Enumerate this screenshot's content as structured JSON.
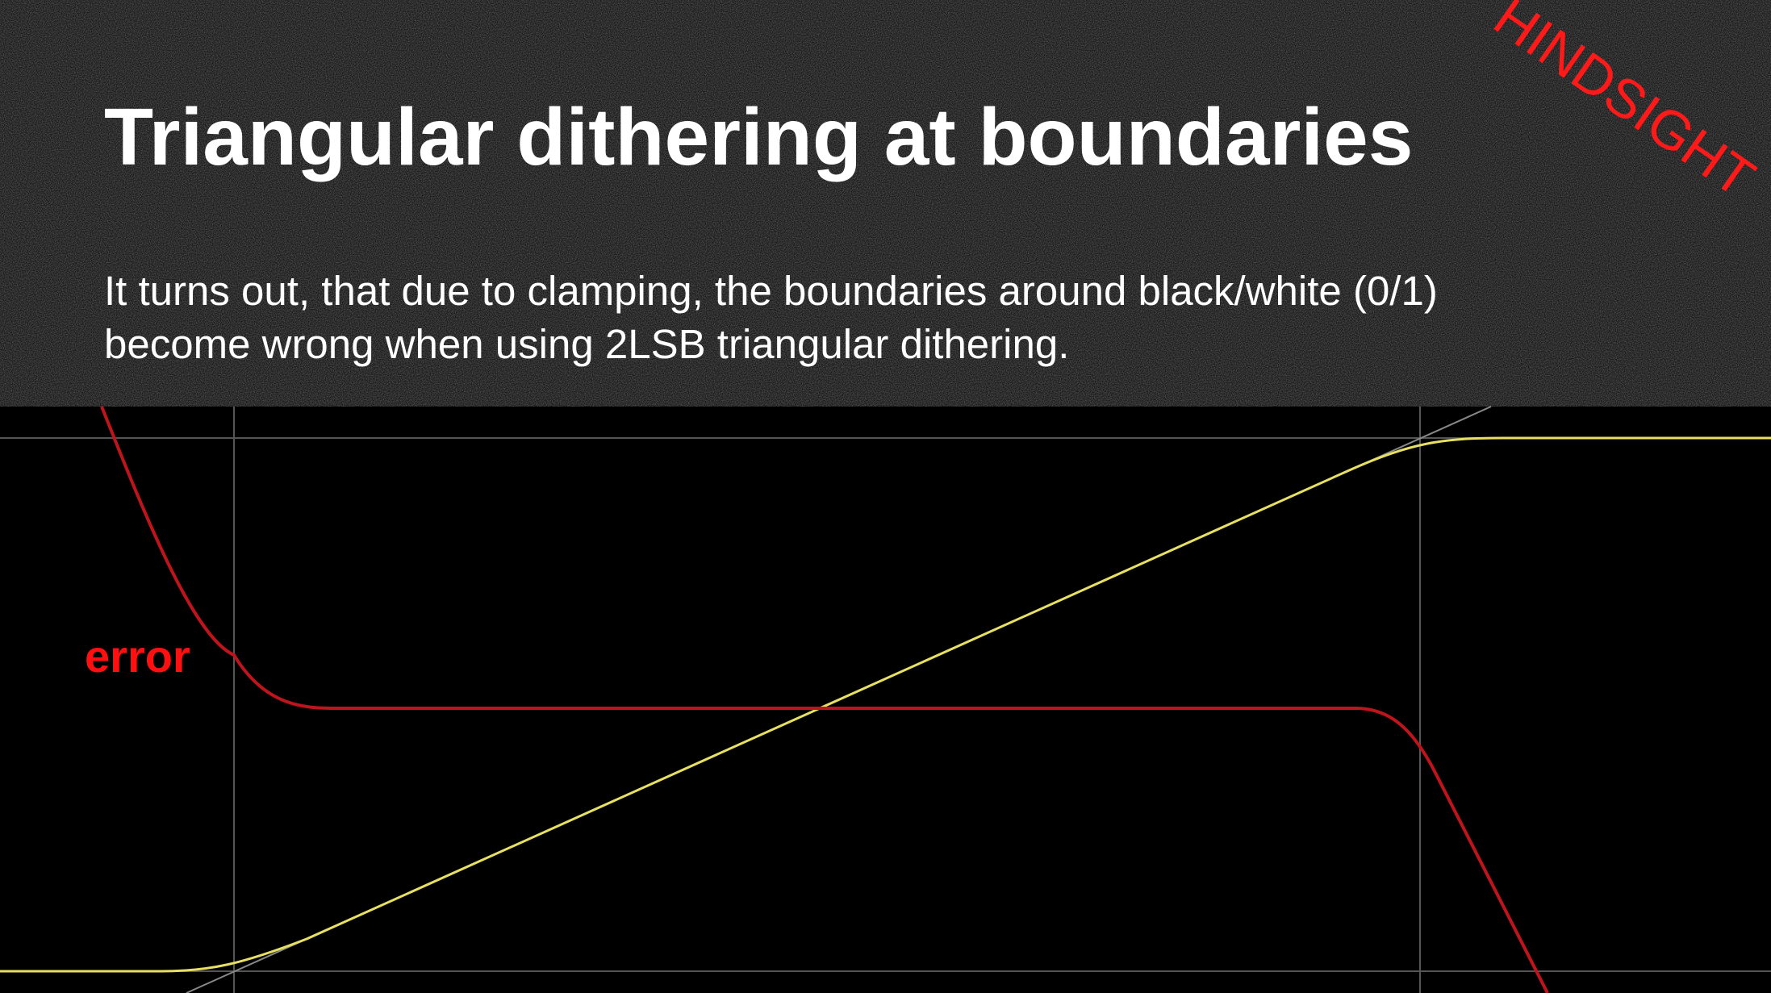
{
  "slide": {
    "title": "Triangular dithering at boundaries",
    "body": [
      "It turns out, that due to clamping, the boundaries around black/white (0/1)",
      "become wrong when using 2LSB triangular dithering."
    ],
    "stamp": "HINDSIGHT",
    "plot_label": "error"
  }
}
